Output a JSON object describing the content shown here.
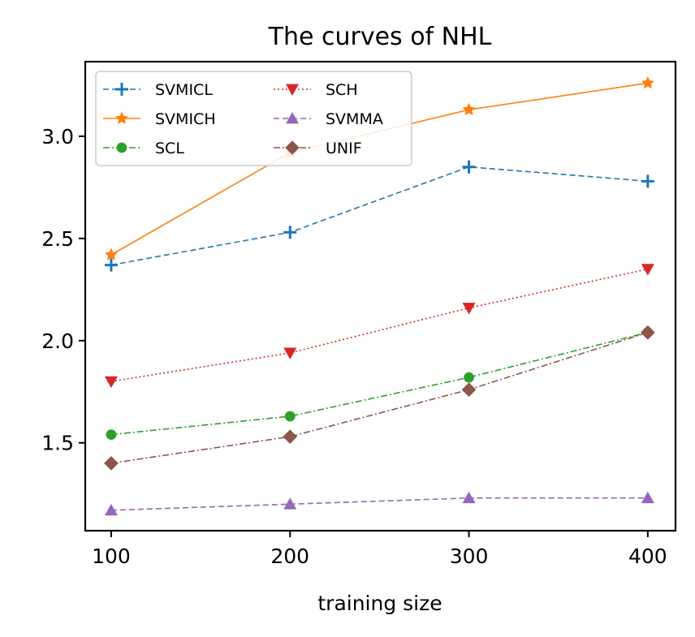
{
  "chart_data": {
    "type": "line",
    "title": "The curves of NHL",
    "xlabel": "training size",
    "ylabel": "",
    "x": [
      100,
      200,
      300,
      400
    ],
    "xticks": [
      "100",
      "200",
      "300",
      "400"
    ],
    "yticks": [
      "1.5",
      "2.0",
      "2.5",
      "3.0"
    ],
    "xlim": [
      85.5,
      415.5
    ],
    "ylim": [
      1.07,
      3.365
    ],
    "grid": false,
    "legend_position": "top-left",
    "legend_columns": 2,
    "series": [
      {
        "name": "SVMICL",
        "color": "#1f77b4",
        "marker": "plus",
        "linestyle": "dashed",
        "values": [
          2.37,
          2.53,
          2.85,
          2.78
        ]
      },
      {
        "name": "SVMICH",
        "color": "#ff7f0e",
        "marker": "star",
        "linestyle": "solid",
        "values": [
          2.42,
          2.92,
          3.13,
          3.26
        ]
      },
      {
        "name": "SCL",
        "color": "#2ca02c",
        "marker": "circle",
        "linestyle": "dashdot",
        "values": [
          1.54,
          1.63,
          1.82,
          2.04
        ]
      },
      {
        "name": "SCH",
        "color": "#d62728",
        "marker": "triangle-down",
        "linestyle": "dotted",
        "values": [
          1.8,
          1.94,
          2.16,
          2.35
        ]
      },
      {
        "name": "SVMMA",
        "color": "#9467bd",
        "marker": "triangle-up",
        "linestyle": "dashed",
        "values": [
          1.17,
          1.2,
          1.23,
          1.23
        ]
      },
      {
        "name": "UNIF",
        "color": "#8c564b",
        "marker": "diamond",
        "linestyle": "dashdot",
        "values": [
          1.4,
          1.53,
          1.76,
          2.04
        ]
      }
    ]
  }
}
